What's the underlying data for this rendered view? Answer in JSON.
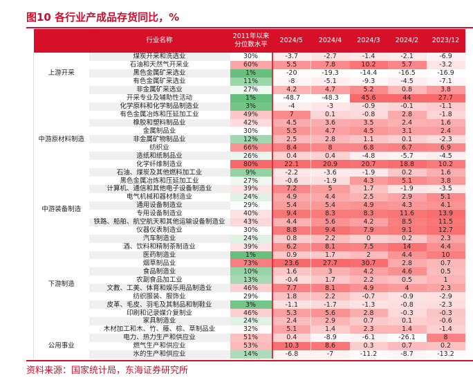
{
  "title": "图10  各行业产成品存货同比，%",
  "source": "资料来源：国家统计局，东海证券研究所",
  "headers": {
    "name": "行业名称",
    "pct": "2011年以来\n分位数水平",
    "cols": [
      "2024/5",
      "2024/4",
      "2024/3",
      "2024/2",
      "2023/12"
    ]
  },
  "colors": {
    "accent": "#d7102a",
    "heat_high": "#f8696b",
    "heat_low": "#ffffff",
    "pct_low": "#63be7b"
  },
  "groups": [
    {
      "label": "上游开采",
      "span": 5
    },
    {
      "label": "中游原材料制造",
      "span": 11
    },
    {
      "label": "中游装备制造",
      "span": 6
    },
    {
      "label": "下游制造",
      "span": 12
    },
    {
      "label": "公用事业",
      "span": 3
    }
  ],
  "rows": [
    {
      "name": "煤炭开采和洗选业",
      "pct": "30%",
      "v": [
        -3.7,
        -2.7,
        -1.4,
        -2.1,
        -6.9
      ]
    },
    {
      "name": "石油和天然气开采业",
      "pct": "60%",
      "v": [
        5.5,
        7.8,
        10.2,
        5.7,
        -3.2
      ]
    },
    {
      "name": "黑色金属矿采选业",
      "pct": "1%",
      "v": [
        -20,
        -19.3,
        -14.4,
        -16.5,
        -16.9
      ]
    },
    {
      "name": "有色金属矿采选业",
      "pct": "11%",
      "v": [
        -8,
        -5.1,
        -9.3,
        -4.5,
        -7.1
      ]
    },
    {
      "name": "非金属矿采选业",
      "pct": "27%",
      "v": [
        4.2,
        4.7,
        5.2,
        0.8,
        3.8
      ]
    },
    {
      "name": "开采专业及辅助性活动",
      "pct": "1%",
      "v": [
        -48.7,
        -48.3,
        45.6,
        44,
        27.7
      ]
    },
    {
      "name": "化学原料和化学制品制造业",
      "pct": "3%",
      "v": [
        -4,
        -3,
        -0.9,
        -0.1,
        -1.1
      ]
    },
    {
      "name": "有色金属冶炼和压延加工业",
      "pct": "49%",
      "v": [
        7,
        0.1,
        -0.8,
        2.8,
        -1.8
      ]
    },
    {
      "name": "橡胶和塑料制品业",
      "pct": "42%",
      "v": [
        4.5,
        3.6,
        3.5,
        2.4,
        1.6
      ]
    },
    {
      "name": "金属制品业",
      "pct": "30%",
      "v": [
        5.5,
        4.7,
        4.5,
        3.1,
        2.4
      ]
    },
    {
      "name": "非金属矿物制品业",
      "pct": "12%",
      "v": [
        2.5,
        2.8,
        1.1,
        0.1,
        -2.3
      ]
    },
    {
      "name": "纺织业",
      "pct": "66%",
      "v": [
        8.4,
        8,
        6.8,
        6.7,
        6.9
      ]
    },
    {
      "name": "造纸和纸制品业",
      "pct": "26%",
      "v": [
        0.4,
        0.4,
        -4.8,
        -5.7,
        -4.5
      ]
    },
    {
      "name": "化学纤维制造业",
      "pct": "80%",
      "v": [
        22.1,
        20.9,
        20.7,
        18.8,
        10.2
      ]
    },
    {
      "name": "石油、煤炭及其他燃料加工业",
      "pct": "9%",
      "v": [
        -2.2,
        -3.6,
        -1.9,
        0.2,
        1.6
      ]
    },
    {
      "name": "黑色金属冶炼和压延加工业",
      "pct": "27%",
      "v": [
        -0.6,
        -1.9,
        4.3,
        5.1,
        3.8
      ]
    },
    {
      "name": "计算机、通信和其他电子设备制造业",
      "pct": "39%",
      "v": [
        7.2,
        5,
        1.7,
        -1.9,
        -3.5
      ]
    },
    {
      "name": "电气机械和器材制造业",
      "pct": "24%",
      "v": [
        4.9,
        4.4,
        2.5,
        2.9,
        5.1
      ]
    },
    {
      "name": "通用设备制造业",
      "pct": "29%",
      "v": [
        5.4,
        5.4,
        4.9,
        4.3,
        4.1
      ]
    },
    {
      "name": "专用设备制造业",
      "pct": "40%",
      "v": [
        9.4,
        8.3,
        8.3,
        11.6,
        13.9
      ]
    },
    {
      "name": "铁路、船舶、航空航天和其他运输设备制造业",
      "pct": "43%",
      "v": [
        4.4,
        5.6,
        4.2,
        8.5,
        11.5
      ]
    },
    {
      "name": "仪器仪表制造业",
      "pct": "30%",
      "v": [
        8.8,
        9.4,
        7.9,
        9.1,
        12.7
      ]
    },
    {
      "name": "汽车制造业",
      "pct": "24%",
      "v": [
        0.8,
        2.2,
        0,
        0.2,
        2.3
      ]
    },
    {
      "name": "酒、饮料和精制茶制造业",
      "pct": "39%",
      "v": [
        6.2,
        8.1,
        7.5,
        14,
        4.4
      ]
    },
    {
      "name": "医药制造业",
      "pct": "1%",
      "v": [
        0.9,
        1.7,
        2,
        4.4,
        10
      ]
    },
    {
      "name": "烟草制品业",
      "pct": "73%",
      "v": [
        23.6,
        27.7,
        30.7,
        2.8,
        0.7
      ]
    },
    {
      "name": "食品制造业",
      "pct": "10%",
      "v": [
        1.6,
        3,
        4.2,
        4.6,
        0.5
      ]
    },
    {
      "name": "农副食品加工业",
      "pct": "13%",
      "v": [
        -0.4,
        1.7,
        2.2,
        0.5,
        1
      ]
    },
    {
      "name": "文教、工美、体育和娱乐用品制造业",
      "pct": "46%",
      "v": [
        7.7,
        8.1,
        4.9,
        4,
        2.3
      ]
    },
    {
      "name": "纺织服装、服饰业",
      "pct": "29%",
      "v": [
        1.8,
        2.2,
        -0.7,
        -0.9,
        -2.9
      ]
    },
    {
      "name": "皮革、毛皮、羽毛及其制品和制鞋业",
      "pct": "3%",
      "v": [
        -1.1,
        -1.7,
        -1.3,
        -0.8,
        -2.3
      ]
    },
    {
      "name": "印刷和记录媒介复制业",
      "pct": "46%",
      "v": [
        5.3,
        5.6,
        2.8,
        -0.3,
        -0.3
      ]
    },
    {
      "name": "家具制造业",
      "pct": "24%",
      "v": [
        2.4,
        2.9,
        0.7,
        0.1,
        -0.6
      ]
    },
    {
      "name": "木材加工和木、竹、藤、棕、草制品业",
      "pct": "32%",
      "v": [
        5.1,
        1.4,
        2.3,
        1.4,
        -1.4
      ]
    },
    {
      "name": "电力、热力生产和供应业",
      "pct": "51%",
      "v": [
        0.4,
        -8.9,
        -6.1,
        -26.1,
        8
      ]
    },
    {
      "name": "燃气生产和供应业",
      "pct": "53%",
      "v": [
        10.3,
        8.6,
        0.3,
        0.7,
        0.2
      ]
    },
    {
      "name": "水的生产和供应业",
      "pct": "14%",
      "v": [
        -6.8,
        -7,
        -11.2,
        -8.7,
        -13.2
      ]
    }
  ]
}
